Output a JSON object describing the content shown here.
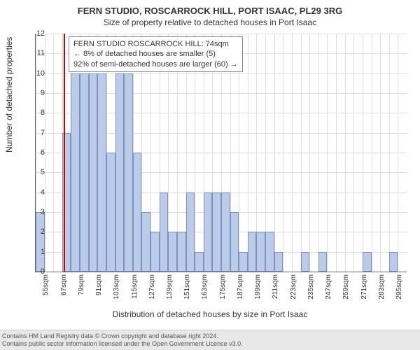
{
  "title": "FERN STUDIO, ROSCARROCK HILL, PORT ISAAC, PL29 3RG",
  "subtitle": "Size of property relative to detached houses in Port Isaac",
  "yaxis_label": "Number of detached properties",
  "xaxis_label": "Distribution of detached houses by size in Port Isaac",
  "chart": {
    "type": "histogram",
    "ylim": [
      0,
      12
    ],
    "ytick_step": 1,
    "x_start": 55,
    "x_step": 6,
    "x_count": 42,
    "x_label_step": 2,
    "x_unit": "sqm",
    "bar_color": "#bccce8",
    "bar_border_color": "#7a91c4",
    "grid_color": "#dddddd",
    "background_color": "#ffffff",
    "marker_color": "#cc0000",
    "marker_x": 74,
    "values": [
      3,
      0,
      0,
      7,
      10,
      10,
      10,
      10,
      6,
      10,
      10,
      6,
      3,
      2,
      4,
      2,
      2,
      4,
      1,
      4,
      4,
      4,
      3,
      1,
      2,
      2,
      2,
      1,
      0,
      0,
      1,
      0,
      1,
      0,
      0,
      0,
      0,
      1,
      0,
      0,
      1,
      0
    ]
  },
  "annotation": {
    "line1": "FERN STUDIO ROSCARROCK HILL: 74sqm",
    "line2": "← 8% of detached houses are smaller (5)",
    "line3": "92% of semi-detached houses are larger (60) →"
  },
  "footer": {
    "line1": "Contains HM Land Registry data © Crown copyright and database right 2024.",
    "line2": "Contains public sector information licensed under the Open Government Licence v3.0."
  }
}
